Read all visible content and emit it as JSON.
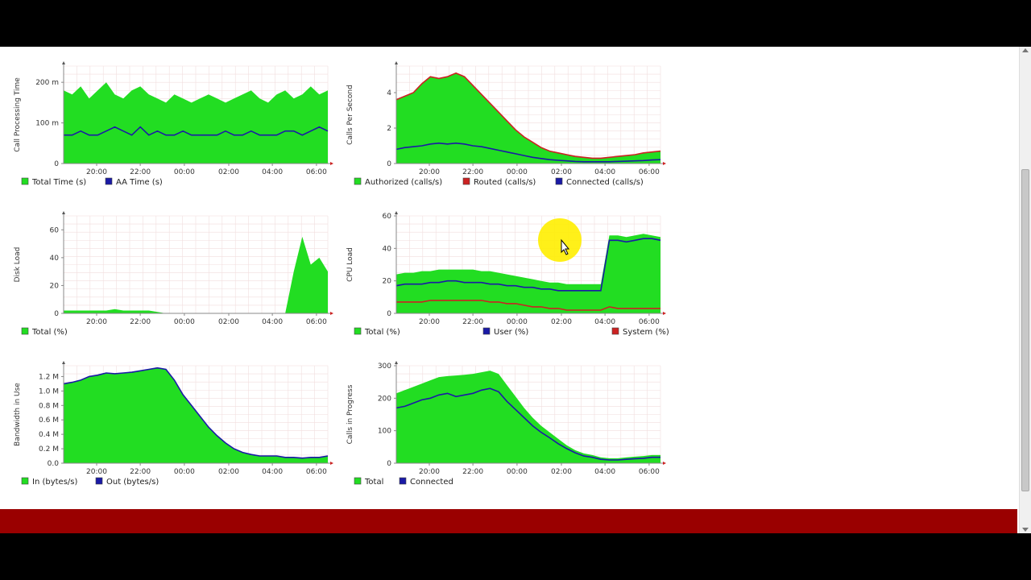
{
  "chart_data": [
    {
      "type": "area",
      "ylabel": "Call Processing Time",
      "x_ticks": [
        "20:00",
        "22:00",
        "00:00",
        "02:00",
        "04:00",
        "06:00"
      ],
      "y_ticks": [
        "0",
        "100 m",
        "200 m"
      ],
      "ylim": [
        0,
        0.24
      ],
      "grid": true,
      "legend_position": "bottom",
      "series": [
        {
          "name": "Total Time (s)",
          "color": "#22dd22",
          "values": [
            0.18,
            0.17,
            0.19,
            0.16,
            0.18,
            0.2,
            0.17,
            0.16,
            0.18,
            0.19,
            0.17,
            0.16,
            0.15,
            0.17,
            0.16,
            0.15,
            0.16,
            0.17,
            0.16,
            0.15,
            0.16,
            0.17,
            0.18,
            0.16,
            0.15,
            0.17,
            0.18,
            0.16,
            0.17,
            0.19,
            0.17,
            0.18
          ]
        },
        {
          "name": "AA Time (s)",
          "color": "#1a1aa6",
          "values": [
            0.07,
            0.07,
            0.08,
            0.07,
            0.07,
            0.08,
            0.09,
            0.08,
            0.07,
            0.09,
            0.07,
            0.08,
            0.07,
            0.07,
            0.08,
            0.07,
            0.07,
            0.07,
            0.07,
            0.08,
            0.07,
            0.07,
            0.08,
            0.07,
            0.07,
            0.07,
            0.08,
            0.08,
            0.07,
            0.08,
            0.09,
            0.08
          ]
        }
      ]
    },
    {
      "type": "area",
      "ylabel": "Calls Per Second",
      "x_ticks": [
        "20:00",
        "22:00",
        "00:00",
        "02:00",
        "04:00",
        "06:00"
      ],
      "y_ticks": [
        "0",
        "2",
        "4"
      ],
      "ylim": [
        0,
        5.5
      ],
      "grid": true,
      "legend_position": "bottom",
      "series": [
        {
          "name": "Authorized (calls/s)",
          "color": "#22dd22",
          "values": [
            3.6,
            3.8,
            4.0,
            4.5,
            4.9,
            4.8,
            4.9,
            5.1,
            4.9,
            4.4,
            3.9,
            3.4,
            2.9,
            2.4,
            1.9,
            1.5,
            1.2,
            0.9,
            0.7,
            0.6,
            0.5,
            0.4,
            0.35,
            0.3,
            0.3,
            0.35,
            0.4,
            0.45,
            0.5,
            0.6,
            0.65,
            0.7
          ]
        },
        {
          "name": "Routed (calls/s)",
          "color": "#cc2222",
          "values": [
            3.6,
            3.8,
            4.0,
            4.5,
            4.9,
            4.8,
            4.9,
            5.1,
            4.9,
            4.4,
            3.9,
            3.4,
            2.9,
            2.4,
            1.9,
            1.5,
            1.2,
            0.9,
            0.7,
            0.6,
            0.5,
            0.4,
            0.35,
            0.3,
            0.3,
            0.35,
            0.4,
            0.45,
            0.5,
            0.6,
            0.65,
            0.7
          ]
        },
        {
          "name": "Connected (calls/s)",
          "color": "#1a1aa6",
          "values": [
            0.8,
            0.9,
            0.95,
            1.0,
            1.1,
            1.15,
            1.1,
            1.15,
            1.1,
            1.0,
            0.95,
            0.85,
            0.75,
            0.65,
            0.55,
            0.45,
            0.35,
            0.28,
            0.22,
            0.18,
            0.15,
            0.12,
            0.1,
            0.1,
            0.1,
            0.1,
            0.12,
            0.13,
            0.15,
            0.17,
            0.2,
            0.22
          ]
        }
      ]
    },
    {
      "type": "area",
      "ylabel": "Disk Load",
      "x_ticks": [
        "20:00",
        "22:00",
        "00:00",
        "02:00",
        "04:00",
        "06:00"
      ],
      "y_ticks": [
        "0",
        "20",
        "40",
        "60"
      ],
      "ylim": [
        0,
        70
      ],
      "grid": true,
      "legend_position": "bottom",
      "series": [
        {
          "name": "Total (%)",
          "color": "#22dd22",
          "values": [
            2,
            2,
            2,
            2,
            2,
            2,
            3,
            2,
            2,
            2,
            2,
            1,
            0,
            0,
            0,
            0,
            0,
            0,
            0,
            0,
            0,
            0,
            0,
            0,
            0,
            0,
            0,
            30,
            55,
            35,
            40,
            30
          ]
        }
      ]
    },
    {
      "type": "area",
      "ylabel": "CPU Load",
      "x_ticks": [
        "20:00",
        "22:00",
        "00:00",
        "02:00",
        "04:00",
        "06:00"
      ],
      "y_ticks": [
        "0",
        "20",
        "40",
        "60"
      ],
      "ylim": [
        0,
        60
      ],
      "grid": true,
      "legend_position": "bottom",
      "series": [
        {
          "name": "Total (%)",
          "color": "#22dd22",
          "values": [
            24,
            25,
            25,
            26,
            26,
            27,
            27,
            27,
            27,
            27,
            26,
            26,
            25,
            24,
            23,
            22,
            21,
            20,
            19,
            19,
            18,
            18,
            18,
            18,
            18,
            48,
            48,
            47,
            48,
            49,
            48,
            47
          ]
        },
        {
          "name": "User (%)",
          "color": "#1a1aa6",
          "values": [
            17,
            18,
            18,
            18,
            19,
            19,
            20,
            20,
            19,
            19,
            19,
            18,
            18,
            17,
            17,
            16,
            16,
            15,
            15,
            14,
            14,
            14,
            14,
            14,
            14,
            45,
            45,
            44,
            45,
            46,
            46,
            45
          ]
        },
        {
          "name": "System (%)",
          "color": "#cc2222",
          "values": [
            7,
            7,
            7,
            7,
            8,
            8,
            8,
            8,
            8,
            8,
            8,
            7,
            7,
            6,
            6,
            5,
            4,
            4,
            3,
            3,
            2,
            2,
            2,
            2,
            2,
            4,
            3,
            3,
            3,
            3,
            3,
            3
          ]
        }
      ]
    },
    {
      "type": "area",
      "ylabel": "Bandwidth in Use",
      "x_ticks": [
        "20:00",
        "22:00",
        "00:00",
        "02:00",
        "04:00",
        "06:00"
      ],
      "y_ticks": [
        "0.0",
        "0.2 M",
        "0.4 M",
        "0.6 M",
        "0.8 M",
        "1.0 M",
        "1.2 M"
      ],
      "ylim": [
        0,
        1.35
      ],
      "grid": true,
      "legend_position": "bottom",
      "series": [
        {
          "name": "In (bytes/s)",
          "color": "#22dd22",
          "values": [
            1.1,
            1.12,
            1.15,
            1.2,
            1.22,
            1.25,
            1.24,
            1.25,
            1.26,
            1.28,
            1.3,
            1.32,
            1.3,
            1.15,
            0.95,
            0.8,
            0.65,
            0.5,
            0.38,
            0.28,
            0.2,
            0.15,
            0.12,
            0.1,
            0.1,
            0.1,
            0.08,
            0.08,
            0.07,
            0.08,
            0.08,
            0.1
          ]
        },
        {
          "name": "Out (bytes/s)",
          "color": "#1a1aa6",
          "values": [
            1.1,
            1.12,
            1.15,
            1.2,
            1.22,
            1.25,
            1.24,
            1.25,
            1.26,
            1.28,
            1.3,
            1.32,
            1.3,
            1.15,
            0.95,
            0.8,
            0.65,
            0.5,
            0.38,
            0.28,
            0.2,
            0.15,
            0.12,
            0.1,
            0.1,
            0.1,
            0.08,
            0.08,
            0.07,
            0.08,
            0.08,
            0.1
          ]
        }
      ]
    },
    {
      "type": "area",
      "ylabel": "Calls in Progress",
      "x_ticks": [
        "20:00",
        "22:00",
        "00:00",
        "02:00",
        "04:00",
        "06:00"
      ],
      "y_ticks": [
        "0",
        "100",
        "200",
        "300"
      ],
      "ylim": [
        0,
        300
      ],
      "grid": true,
      "legend_position": "bottom",
      "series": [
        {
          "name": "Total",
          "color": "#22dd22",
          "values": [
            215,
            225,
            235,
            245,
            255,
            265,
            268,
            270,
            272,
            275,
            280,
            285,
            275,
            240,
            205,
            170,
            140,
            115,
            95,
            75,
            55,
            40,
            30,
            25,
            18,
            15,
            15,
            18,
            20,
            22,
            25,
            25
          ]
        },
        {
          "name": "Connected",
          "color": "#1a1aa6",
          "values": [
            170,
            175,
            185,
            195,
            200,
            210,
            215,
            205,
            210,
            215,
            225,
            230,
            220,
            190,
            165,
            140,
            115,
            95,
            78,
            60,
            45,
            32,
            22,
            18,
            12,
            10,
            10,
            12,
            14,
            15,
            18,
            18
          ]
        }
      ]
    }
  ]
}
